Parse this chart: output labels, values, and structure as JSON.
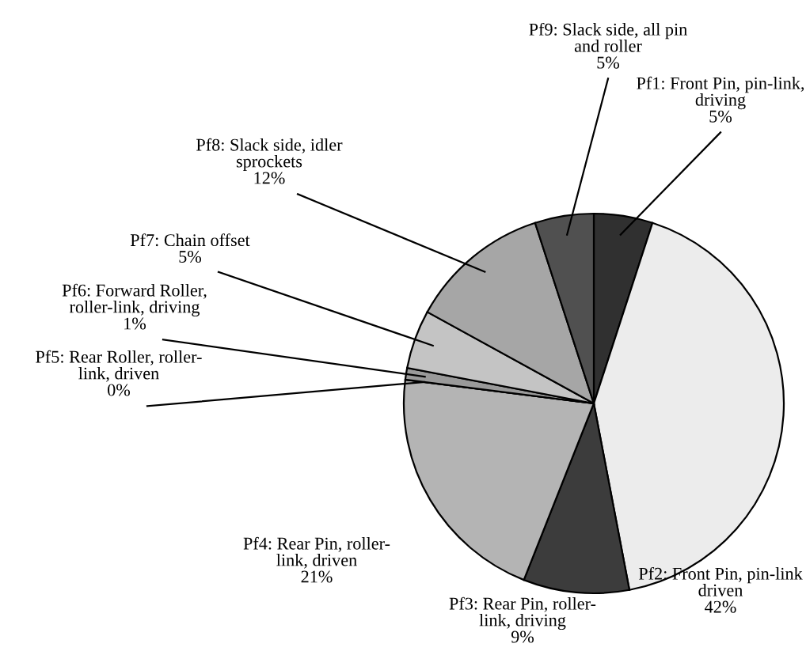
{
  "chart_data": {
    "type": "pie",
    "categories": [
      "Pf1: Front Pin, pin-link,\ndriving",
      "Pf2: Front Pin, pin-link\ndriven",
      "Pf3: Rear Pin, roller-\nlink, driving",
      "Pf4: Rear Pin, roller-\nlink, driven",
      "Pf5: Rear Roller, roller-\nlink, driven",
      "Pf6: Forward Roller,\nroller-link, driving",
      "Pf7: Chain offset",
      "Pf8: Slack side, idler\nsprockets",
      "Pf9: Slack side, all pin\nand roller"
    ],
    "values": [
      5,
      42,
      9,
      21,
      0,
      1,
      5,
      12,
      5
    ],
    "value_labels": [
      "5%",
      "42%",
      "9%",
      "21%",
      "0%",
      "1%",
      "5%",
      "12%",
      "5%"
    ],
    "colors": [
      "#303030",
      "#ececec",
      "#3c3c3c",
      "#b4b4b4",
      "#8c8c8c",
      "#9a9a9a",
      "#c4c4c4",
      "#a6a6a6",
      "#505050"
    ]
  }
}
